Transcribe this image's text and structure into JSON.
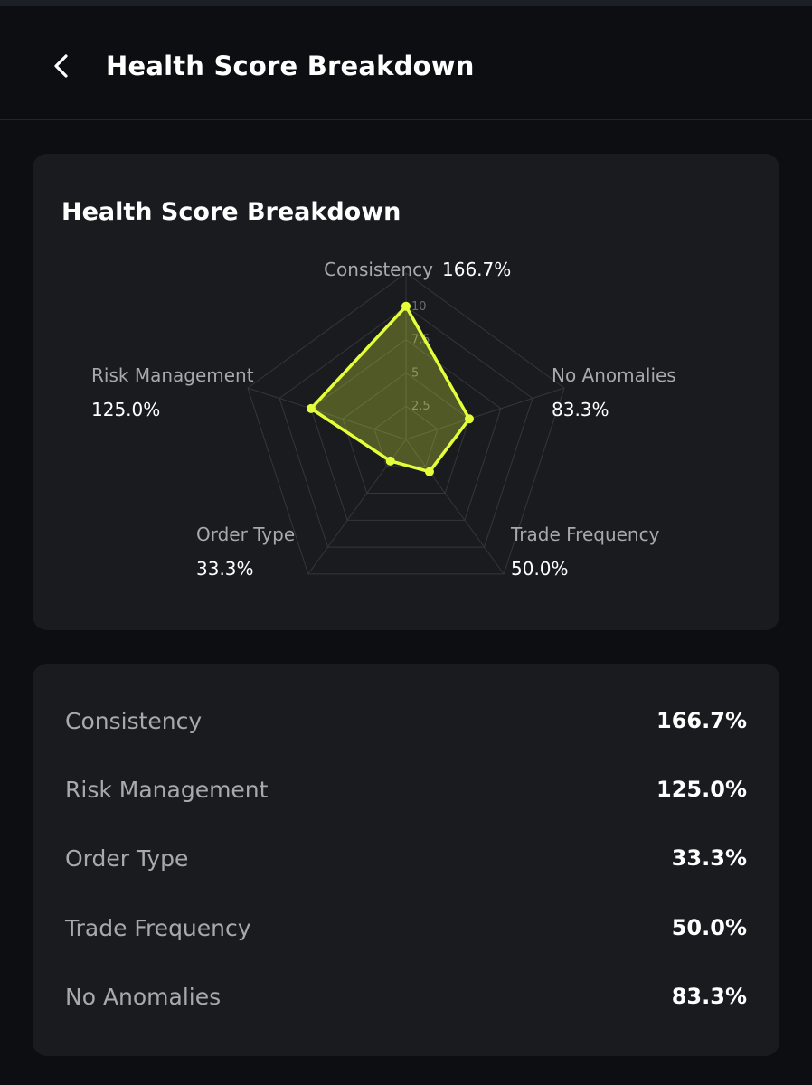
{
  "header": {
    "title": "Health Score Breakdown"
  },
  "card": {
    "title": "Health Score Breakdown"
  },
  "colors": {
    "background": "#0d0e11",
    "card": "#1a1b1f",
    "accent": "#e4ff3a",
    "label": "#a7a9ad"
  },
  "chart_data": {
    "type": "radar",
    "title": "Health Score Breakdown",
    "axes": [
      "Consistency",
      "No Anomalies",
      "Trade Frequency",
      "Order Type",
      "Risk Management"
    ],
    "values": [
      10,
      5,
      3,
      2,
      7.5
    ],
    "value_labels": [
      "166.7%",
      "83.3%",
      "50.0%",
      "33.3%",
      "125.0%"
    ],
    "ticks": [
      "2.5",
      "5",
      "7.5",
      "10"
    ],
    "range": [
      0,
      12.5
    ],
    "grid": true
  },
  "list": {
    "items": [
      {
        "label": "Consistency",
        "value": "166.7%"
      },
      {
        "label": "Risk Management",
        "value": "125.0%"
      },
      {
        "label": "Order Type",
        "value": "33.3%"
      },
      {
        "label": "Trade Frequency",
        "value": "50.0%"
      },
      {
        "label": "No Anomalies",
        "value": "83.3%"
      }
    ]
  }
}
